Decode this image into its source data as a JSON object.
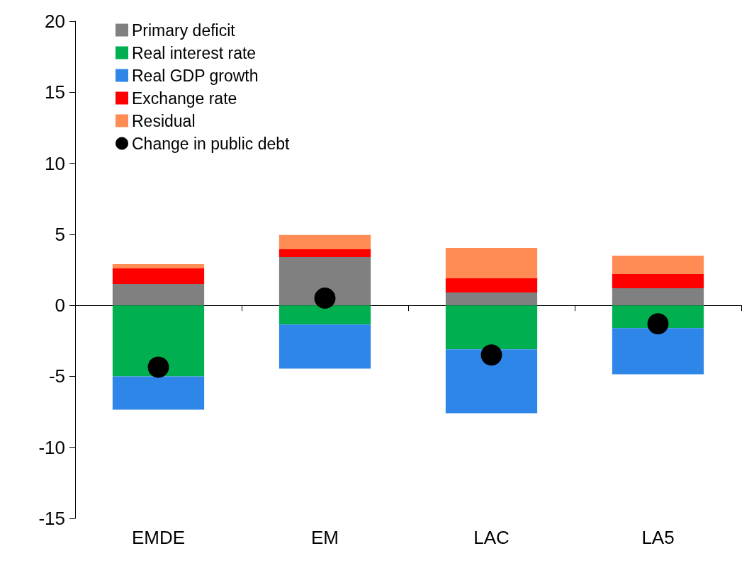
{
  "chart_data": {
    "type": "bar",
    "stacked": true,
    "categories": [
      "EMDE",
      "EM",
      "LAC",
      "LA5"
    ],
    "series": [
      {
        "name": "Primary deficit",
        "color": "#808080",
        "values": [
          1.5,
          3.4,
          0.9,
          1.2
        ]
      },
      {
        "name": "Real interest rate",
        "color": "#00b050",
        "values": [
          -5.0,
          -1.35,
          -3.1,
          -1.6
        ]
      },
      {
        "name": "Real GDP growth",
        "color": "#2e86e8",
        "values": [
          -2.35,
          -3.1,
          -4.5,
          -3.25
        ]
      },
      {
        "name": "Exchange rate",
        "color": "#ff0000",
        "values": [
          1.1,
          0.55,
          1.0,
          1.0
        ]
      },
      {
        "name": "Residual",
        "color": "#ff8c55",
        "values": [
          0.3,
          1.0,
          2.15,
          1.3
        ]
      },
      {
        "name": "Change in public debt",
        "type": "scatter",
        "color": "#000000",
        "x": [
          "EMDE",
          "EM",
          "LAC",
          "LA5"
        ],
        "values": [
          -4.35,
          0.5,
          -3.5,
          -1.3
        ]
      }
    ],
    "ylim": [
      -15,
      20
    ],
    "yticks": [
      -15,
      -10,
      -5,
      0,
      5,
      10,
      15,
      20
    ],
    "legend": "top left",
    "marker": "circle"
  }
}
